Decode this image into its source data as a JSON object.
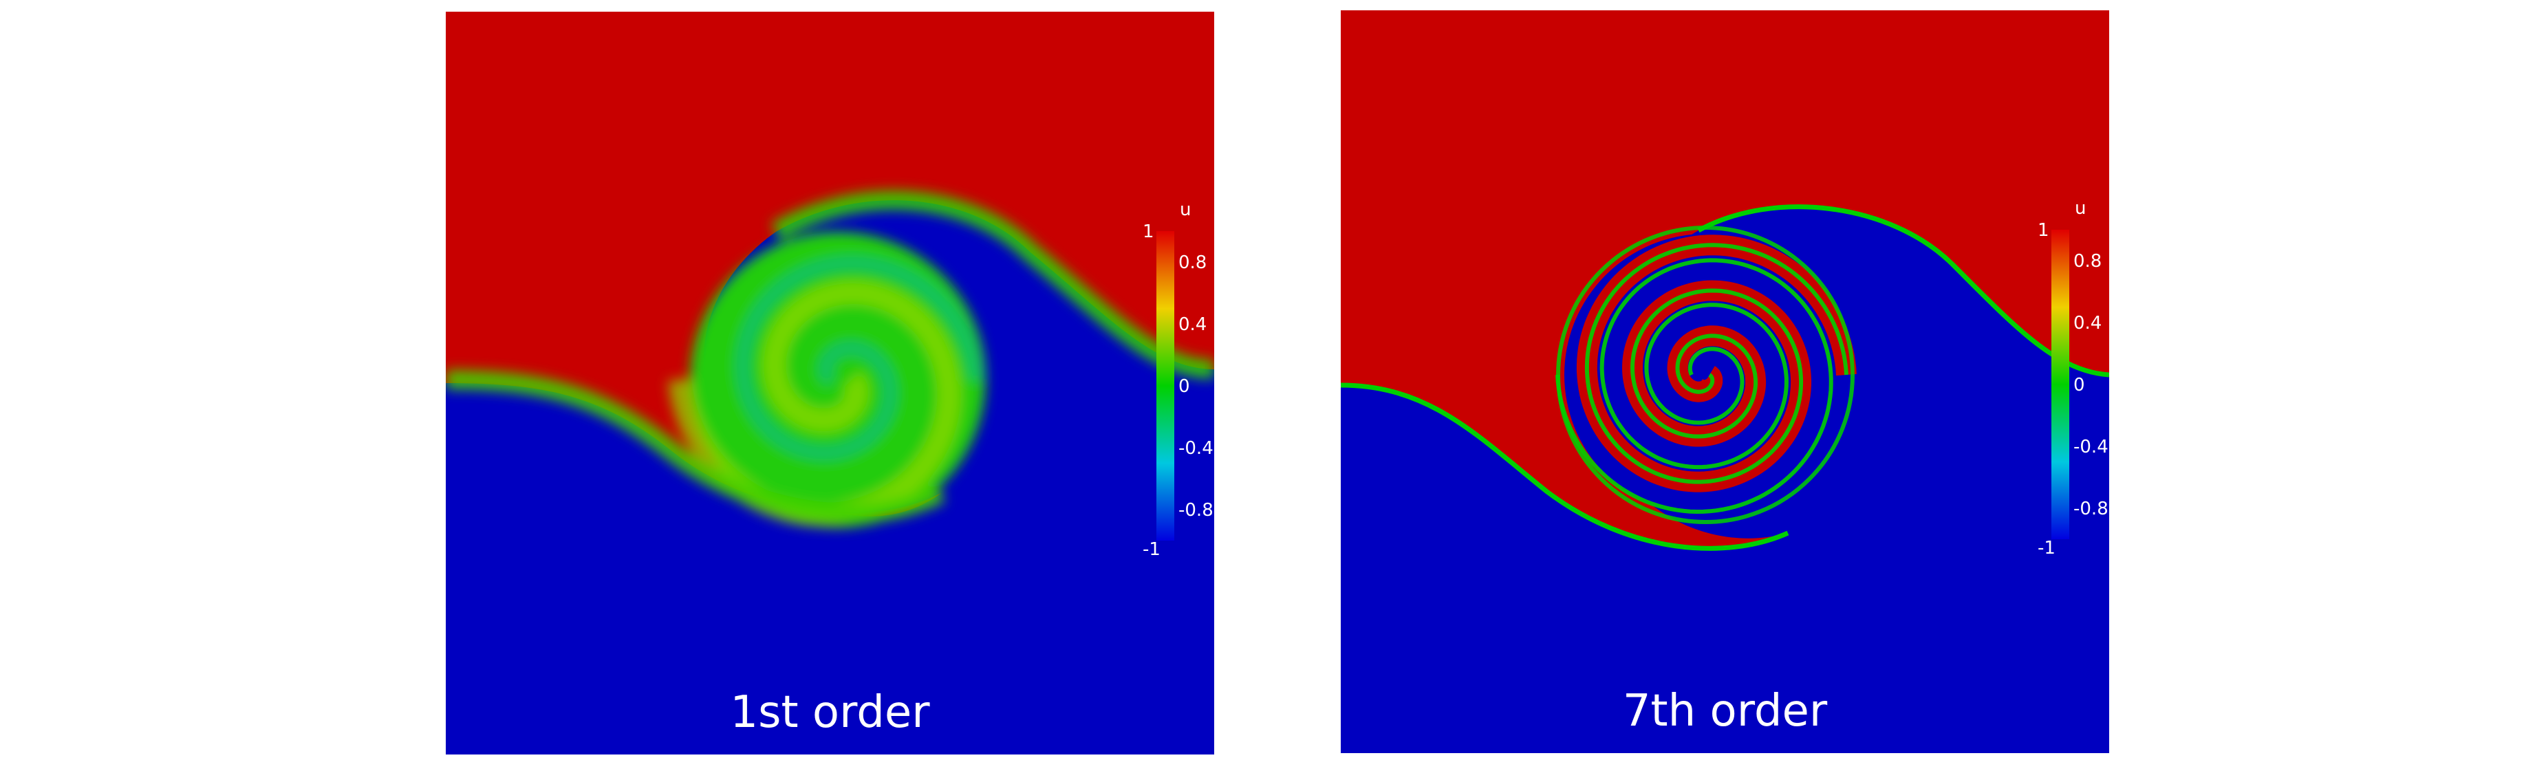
{
  "colors": {
    "positive": "#c80000",
    "negative": "#0000c0",
    "interface": "#00c800",
    "caption_text": "#ffffff"
  },
  "colorbar": {
    "title": "u",
    "ticks": [
      "1",
      "0.8",
      "0.4",
      "0",
      "-0.4",
      "-0.8",
      "-1"
    ]
  },
  "panels": [
    {
      "caption": "1st order",
      "scheme": "smeared",
      "turns": 1.5
    },
    {
      "caption": "7th order",
      "scheme": "sharp",
      "turns": 3
    }
  ]
}
